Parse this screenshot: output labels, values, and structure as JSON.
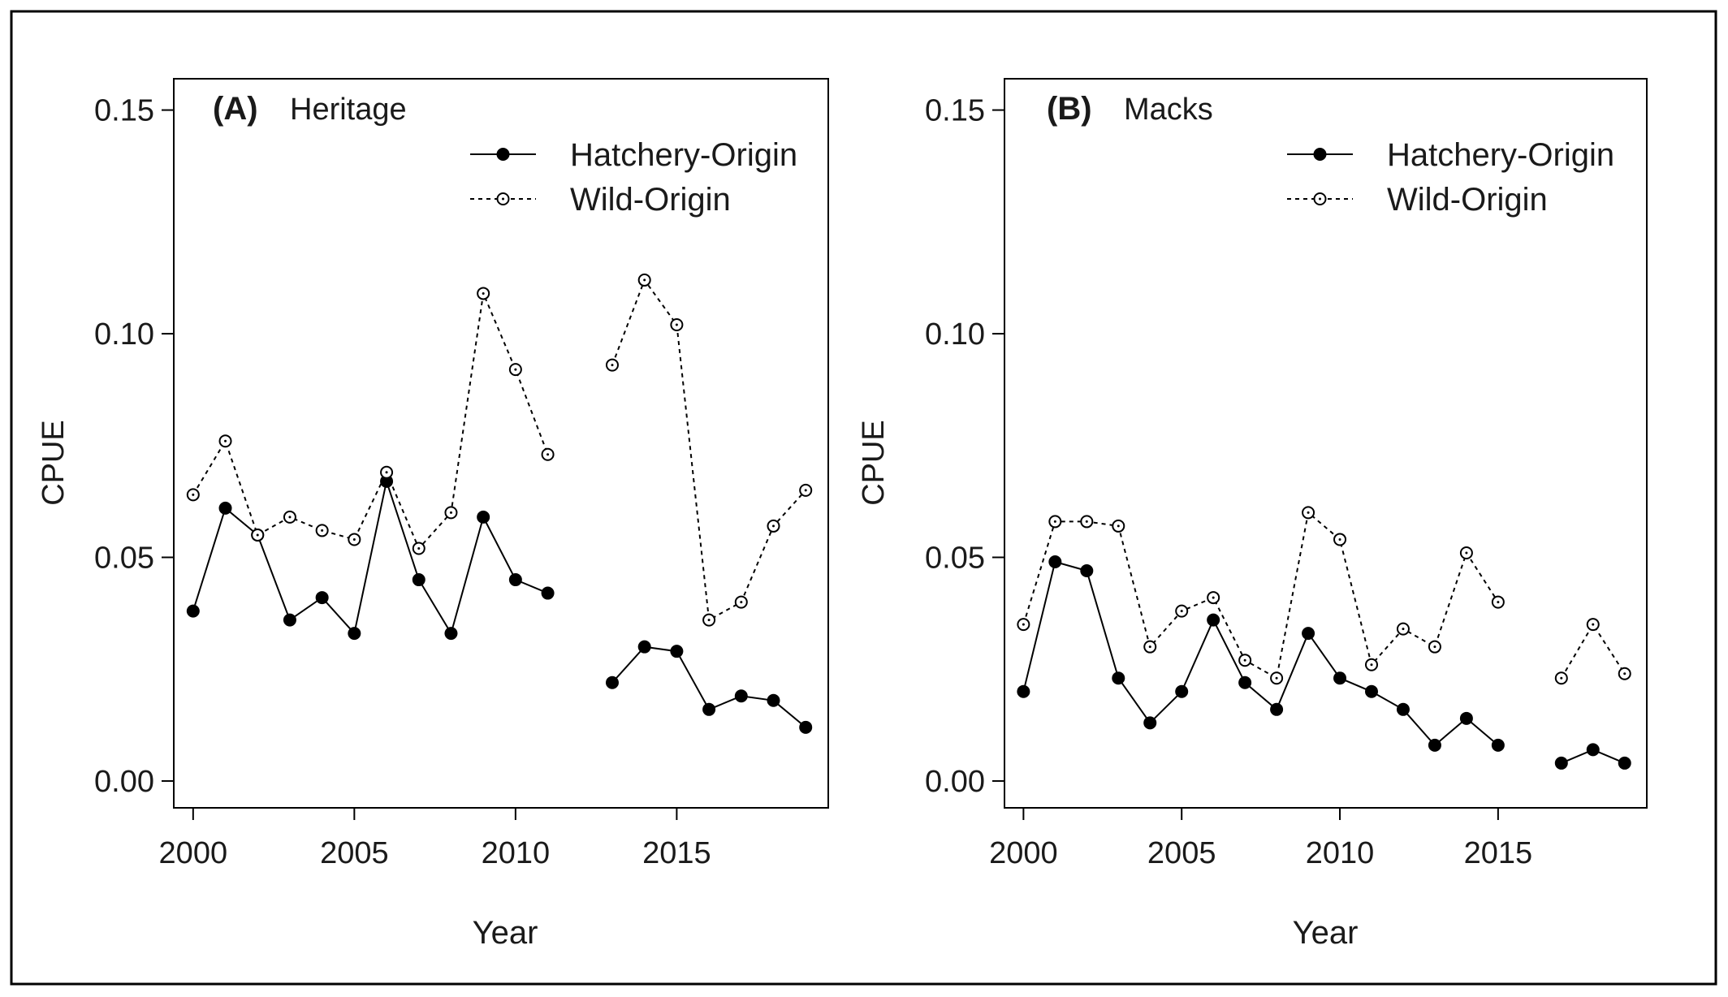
{
  "chart_data": [
    {
      "type": "line",
      "panel_label": "(A)",
      "title": "Heritage",
      "xlabel": "Year",
      "ylabel": "CPUE",
      "xlim": [
        1999.4,
        2019.7
      ],
      "ylim": [
        -0.006,
        0.157
      ],
      "xticks": [
        "2000",
        "2005",
        "2010",
        "2015"
      ],
      "yticks": [
        "0.00",
        "0.05",
        "0.10",
        "0.15"
      ],
      "legend": {
        "placement": "top-right",
        "entries": [
          "Hatchery-Origin",
          "Wild-Origin"
        ]
      },
      "series": [
        {
          "name": "Hatchery-Origin",
          "style": "solid-filled",
          "x": [
            2000,
            2001,
            2002,
            2003,
            2004,
            2005,
            2006,
            2007,
            2008,
            2009,
            2010,
            2011,
            2013,
            2014,
            2015,
            2016,
            2017,
            2018,
            2019
          ],
          "y": [
            0.038,
            0.061,
            0.055,
            0.036,
            0.041,
            0.033,
            0.067,
            0.045,
            0.033,
            0.059,
            0.045,
            0.042,
            0.022,
            0.03,
            0.029,
            0.016,
            0.019,
            0.018,
            0.012
          ]
        },
        {
          "name": "Wild-Origin",
          "style": "dashed-open",
          "x": [
            2000,
            2001,
            2002,
            2003,
            2004,
            2005,
            2006,
            2007,
            2008,
            2009,
            2010,
            2011,
            2013,
            2014,
            2015,
            2016,
            2017,
            2018,
            2019
          ],
          "y": [
            0.064,
            0.076,
            0.055,
            0.059,
            0.056,
            0.054,
            0.069,
            0.052,
            0.06,
            0.109,
            0.092,
            0.073,
            0.093,
            0.112,
            0.102,
            0.036,
            0.04,
            0.057,
            0.065
          ]
        }
      ]
    },
    {
      "type": "line",
      "panel_label": "(B)",
      "title": "Macks",
      "xlabel": "Year",
      "ylabel": "CPUE",
      "xlim": [
        1999.4,
        2019.7
      ],
      "ylim": [
        -0.006,
        0.157
      ],
      "xticks": [
        "2000",
        "2005",
        "2010",
        "2015"
      ],
      "yticks": [
        "0.00",
        "0.05",
        "0.10",
        "0.15"
      ],
      "legend": {
        "placement": "top-right",
        "entries": [
          "Hatchery-Origin",
          "Wild-Origin"
        ]
      },
      "series": [
        {
          "name": "Hatchery-Origin",
          "style": "solid-filled",
          "x": [
            2000,
            2001,
            2002,
            2003,
            2004,
            2005,
            2006,
            2007,
            2008,
            2009,
            2010,
            2011,
            2012,
            2013,
            2014,
            2015,
            2017,
            2018,
            2019
          ],
          "y": [
            0.02,
            0.049,
            0.047,
            0.023,
            0.013,
            0.02,
            0.036,
            0.022,
            0.016,
            0.033,
            0.023,
            0.02,
            0.016,
            0.008,
            0.014,
            0.008,
            0.004,
            0.007,
            0.004
          ]
        },
        {
          "name": "Wild-Origin",
          "style": "dashed-open",
          "x": [
            2000,
            2001,
            2002,
            2003,
            2004,
            2005,
            2006,
            2007,
            2008,
            2009,
            2010,
            2011,
            2012,
            2013,
            2014,
            2015,
            2017,
            2018,
            2019
          ],
          "y": [
            0.035,
            0.058,
            0.058,
            0.057,
            0.03,
            0.038,
            0.041,
            0.027,
            0.023,
            0.06,
            0.054,
            0.026,
            0.034,
            0.03,
            0.051,
            0.04,
            0.023,
            0.035,
            0.024
          ]
        }
      ]
    }
  ]
}
